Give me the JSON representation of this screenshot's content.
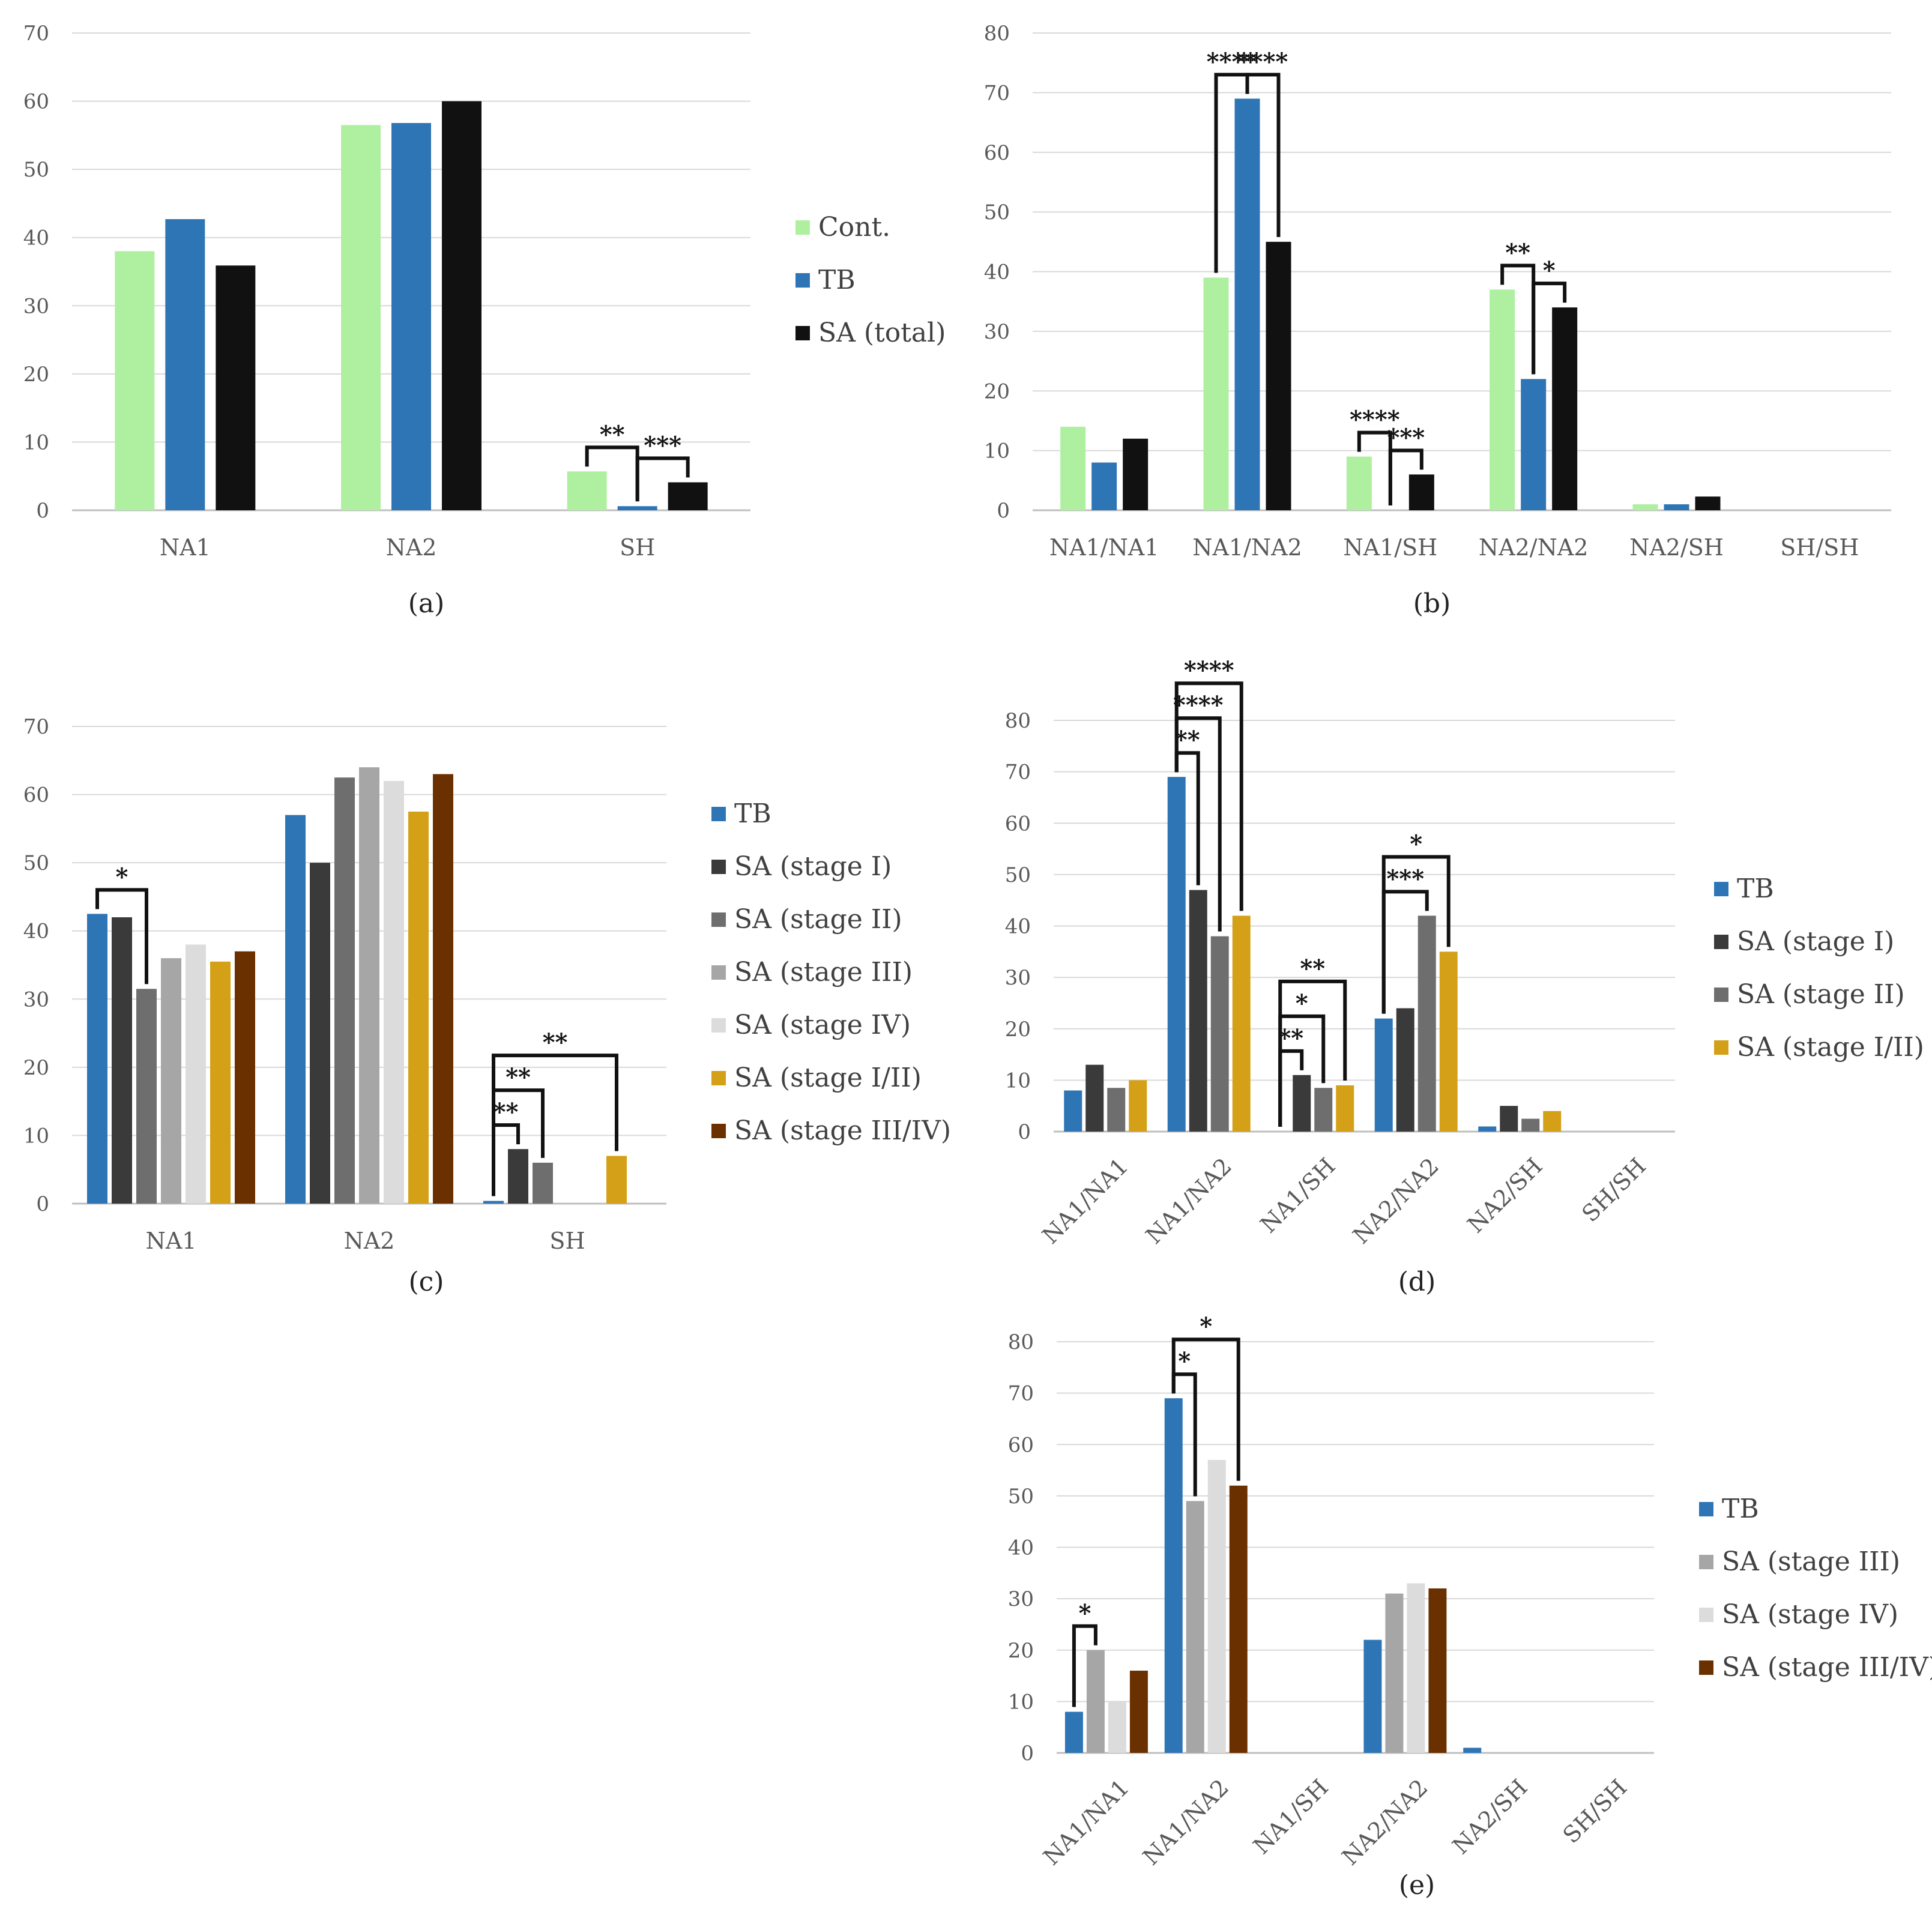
{
  "colors": {
    "Cont.": "#aef0a0",
    "TB": "#2e75b6",
    "SA (total)": "#111111",
    "SA (stage I)": "#3a3a3a",
    "SA (stage II)": "#6e6e6e",
    "SA (stage III)": "#a6a6a6",
    "SA (stage IV)": "#dcdcdc",
    "SA (stage I/II)": "#d4a017",
    "SA (stage III/IV)": "#6b3000"
  },
  "chart_data": [
    {
      "id": "a",
      "type": "bar",
      "caption": "(a)",
      "categories": [
        "NA1",
        "NA2",
        "SH"
      ],
      "ylim": [
        0,
        70
      ],
      "yticks": [
        0,
        10,
        20,
        30,
        40,
        50,
        60,
        70
      ],
      "series": [
        {
          "name": "Cont.",
          "values": [
            38,
            56.5,
            5.7
          ]
        },
        {
          "name": "TB",
          "values": [
            42.7,
            56.8,
            0.6
          ]
        },
        {
          "name": "SA (total)",
          "values": [
            35.9,
            60,
            4.1
          ]
        }
      ],
      "legend": [
        "Cont.",
        "TB",
        "SA (total)"
      ],
      "significance": [
        {
          "cat": 2,
          "from": 0,
          "to": 1,
          "label": "**",
          "level": 0
        },
        {
          "cat": 2,
          "from": 1,
          "to": 2,
          "label": "***",
          "level": 0
        }
      ]
    },
    {
      "id": "b",
      "type": "bar",
      "caption": "(b)",
      "categories": [
        "NA1/NA1",
        "NA1/NA2",
        "NA1/SH",
        "NA2/NA2",
        "NA2/SH",
        "SH/SH"
      ],
      "ylim": [
        0,
        80
      ],
      "yticks": [
        0,
        10,
        20,
        30,
        40,
        50,
        60,
        70,
        80
      ],
      "series": [
        {
          "name": "Cont.",
          "values": [
            14,
            39,
            9,
            37,
            1,
            0
          ]
        },
        {
          "name": "TB",
          "values": [
            8,
            69,
            0,
            22,
            1,
            0
          ]
        },
        {
          "name": "SA (total)",
          "values": [
            12,
            45,
            6,
            34,
            2.3,
            0
          ]
        }
      ],
      "significance": [
        {
          "cat": 1,
          "from": 0,
          "to": 1,
          "label": "****",
          "level": 0
        },
        {
          "cat": 1,
          "from": 1,
          "to": 2,
          "label": "****",
          "level": 0
        },
        {
          "cat": 2,
          "from": 0,
          "to": 1,
          "label": "****",
          "level": 0
        },
        {
          "cat": 2,
          "from": 1,
          "to": 2,
          "label": "***",
          "level": 0
        },
        {
          "cat": 3,
          "from": 0,
          "to": 1,
          "label": "**",
          "level": 0
        },
        {
          "cat": 3,
          "from": 1,
          "to": 2,
          "label": "*",
          "level": 0
        }
      ]
    },
    {
      "id": "c",
      "type": "bar",
      "caption": "(c)",
      "categories": [
        "NA1",
        "NA2",
        "SH"
      ],
      "ylim": [
        0,
        70
      ],
      "yticks": [
        0,
        10,
        20,
        30,
        40,
        50,
        60,
        70
      ],
      "series": [
        {
          "name": "TB",
          "values": [
            42.5,
            57,
            0.4
          ]
        },
        {
          "name": "SA (stage I)",
          "values": [
            42,
            50,
            8
          ]
        },
        {
          "name": "SA (stage II)",
          "values": [
            31.5,
            62.5,
            6
          ]
        },
        {
          "name": "SA (stage III)",
          "values": [
            36,
            64,
            0
          ]
        },
        {
          "name": "SA (stage IV)",
          "values": [
            38,
            62,
            0
          ]
        },
        {
          "name": "SA (stage I/II)",
          "values": [
            35.5,
            57.5,
            7
          ]
        },
        {
          "name": "SA (stage III/IV)",
          "values": [
            37,
            63,
            0
          ]
        }
      ],
      "legend": [
        "TB",
        "SA (stage I)",
        "SA (stage II)",
        "SA (stage III)",
        "SA (stage IV)",
        "SA (stage I/II)",
        "SA (stage III/IV)"
      ],
      "significance": [
        {
          "cat": 0,
          "from": 0,
          "to": 2,
          "label": "*",
          "level": 0
        },
        {
          "cat": 2,
          "from": 0,
          "to": 1,
          "label": "**",
          "level": 0
        },
        {
          "cat": 2,
          "from": 0,
          "to": 2,
          "label": "**",
          "level": 1
        },
        {
          "cat": 2,
          "from": 0,
          "to": 5,
          "label": "**",
          "level": 2
        }
      ]
    },
    {
      "id": "d",
      "type": "bar",
      "caption": "(d)",
      "categories": [
        "NA1/NA1",
        "NA1/NA2",
        "NA1/SH",
        "NA2/NA2",
        "NA2/SH",
        "SH/SH"
      ],
      "ylim": [
        0,
        80
      ],
      "yticks": [
        0,
        10,
        20,
        30,
        40,
        50,
        60,
        70,
        80
      ],
      "series": [
        {
          "name": "TB",
          "values": [
            8,
            69,
            0,
            22,
            1,
            0
          ]
        },
        {
          "name": "SA (stage I)",
          "values": [
            13,
            47,
            11,
            24,
            5,
            0
          ]
        },
        {
          "name": "SA (stage II)",
          "values": [
            8.5,
            38,
            8.5,
            42,
            2.5,
            0
          ]
        },
        {
          "name": "SA (stage I/II)",
          "values": [
            10,
            42,
            9,
            35,
            4,
            0
          ]
        }
      ],
      "legend": [
        "TB",
        "SA (stage I)",
        "SA (stage II)",
        "SA (stage I/II)"
      ],
      "significance": [
        {
          "cat": 1,
          "from": 0,
          "to": 1,
          "label": "**",
          "level": 0
        },
        {
          "cat": 1,
          "from": 0,
          "to": 2,
          "label": "****",
          "level": 1
        },
        {
          "cat": 1,
          "from": 0,
          "to": 3,
          "label": "****",
          "level": 2
        },
        {
          "cat": 2,
          "from": 0,
          "to": 1,
          "label": "**",
          "level": 0
        },
        {
          "cat": 2,
          "from": 0,
          "to": 2,
          "label": "*",
          "level": 1
        },
        {
          "cat": 2,
          "from": 0,
          "to": 3,
          "label": "**",
          "level": 2
        },
        {
          "cat": 3,
          "from": 0,
          "to": 2,
          "label": "***",
          "level": 0
        },
        {
          "cat": 3,
          "from": 0,
          "to": 3,
          "label": "*",
          "level": 1
        }
      ]
    },
    {
      "id": "e",
      "type": "bar",
      "caption": "(e)",
      "categories": [
        "NA1/NA1",
        "NA1/NA2",
        "NA1/SH",
        "NA2/NA2",
        "NA2/SH",
        "SH/SH"
      ],
      "ylim": [
        0,
        80
      ],
      "yticks": [
        0,
        10,
        20,
        30,
        40,
        50,
        60,
        70,
        80
      ],
      "series": [
        {
          "name": "TB",
          "values": [
            8,
            69,
            0,
            22,
            1,
            0
          ]
        },
        {
          "name": "SA (stage III)",
          "values": [
            20,
            49,
            0,
            31,
            0,
            0
          ]
        },
        {
          "name": "SA (stage IV)",
          "values": [
            10,
            57,
            0,
            33,
            0,
            0
          ]
        },
        {
          "name": "SA (stage III/IV)",
          "values": [
            16,
            52,
            0,
            32,
            0,
            0
          ]
        }
      ],
      "legend": [
        "TB",
        "SA (stage III)",
        "SA (stage IV)",
        "SA (stage III/IV)"
      ],
      "significance": [
        {
          "cat": 0,
          "from": 0,
          "to": 1,
          "label": "*",
          "level": 0
        },
        {
          "cat": 1,
          "from": 0,
          "to": 1,
          "label": "*",
          "level": 0
        },
        {
          "cat": 1,
          "from": 0,
          "to": 3,
          "label": "*",
          "level": 1
        }
      ]
    }
  ]
}
